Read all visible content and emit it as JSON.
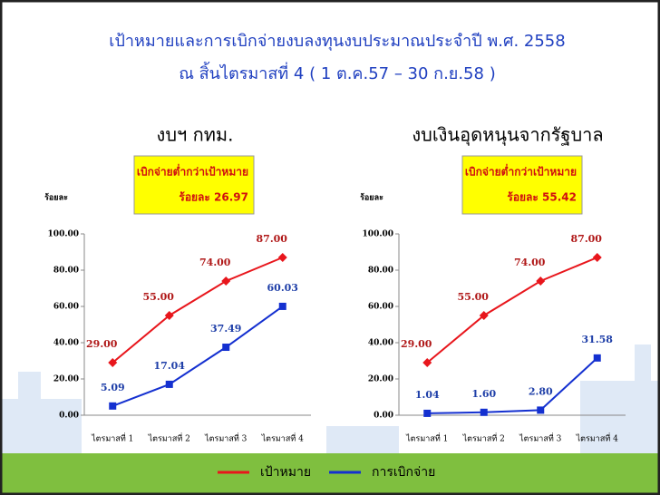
{
  "slide": {
    "title": [
      "เป้าหมายและการเบิกจ่ายงบลงทุนงบประมาณประจำปี พ.ศ. 2558",
      "ณ สิ้นไตรมาสที่ 4 ( 1 ต.ค.57 – 30 ก.ย.58 )"
    ]
  },
  "chart_data": [
    {
      "type": "line",
      "title": "งบฯ กทม.",
      "y_label": "ร้อยละ",
      "annotation": [
        "เบิกจ่ายต่ำกว่าเป้าหมาย",
        "ร้อยละ 26.97"
      ],
      "categories": [
        "ไตรมาสที่ 1",
        "ไตรมาสที่ 2",
        "ไตรมาสที่ 3",
        "ไตรมาสที่ 4"
      ],
      "series": [
        {
          "name": "เป้าหมาย",
          "color": "#e8161c",
          "values": [
            29,
            55,
            74,
            87
          ],
          "value_labels": [
            "29.00",
            "55.00",
            "74.00",
            "87.00"
          ]
        },
        {
          "name": "การเบิกจ่าย",
          "color": "#1430d0",
          "values": [
            5.09,
            17.04,
            37.49,
            60.03
          ],
          "value_labels": [
            "5.09",
            "17.04",
            "37.49",
            "60.03"
          ]
        }
      ],
      "ylim": [
        0,
        100
      ],
      "yticks": [
        {
          "value": 0,
          "label": "0.00"
        },
        {
          "value": 20,
          "label": "20.00"
        },
        {
          "value": 40,
          "label": "40.00"
        },
        {
          "value": 60,
          "label": "60.00"
        },
        {
          "value": 80,
          "label": "80.00"
        },
        {
          "value": 100,
          "label": "100.00"
        }
      ],
      "legend": "bottom"
    },
    {
      "type": "line",
      "title": "งบเงินอุดหนุนจากรัฐบาล",
      "y_label": "ร้อยละ",
      "annotation": [
        "เบิกจ่ายต่ำกว่าเป้าหมาย",
        "ร้อยละ 55.42"
      ],
      "categories": [
        "ไตรมาสที่ 1",
        "ไตรมาสที่ 2",
        "ไตรมาสที่ 3",
        "ไตรมาสที่ 4"
      ],
      "series": [
        {
          "color": "#e8161c",
          "values": [
            29,
            55,
            74,
            87
          ],
          "value_labels": [
            "29.00",
            "55.00",
            "74.00",
            "87.00"
          ]
        },
        {
          "color": "#1430d0",
          "values": [
            1.04,
            1.6,
            2.8,
            31.58
          ],
          "value_labels": [
            "1.04",
            "1.60",
            "2.80",
            "31.58"
          ]
        }
      ],
      "ylim": [
        0,
        100
      ],
      "yticks": [
        {
          "value": 0,
          "label": "0.00"
        },
        {
          "value": 20,
          "label": "20.00"
        },
        {
          "value": 40,
          "label": "40.00"
        },
        {
          "value": 60,
          "label": "60.00"
        },
        {
          "value": 80,
          "label": "80.00"
        },
        {
          "value": 100,
          "label": "100.00"
        }
      ]
    }
  ]
}
